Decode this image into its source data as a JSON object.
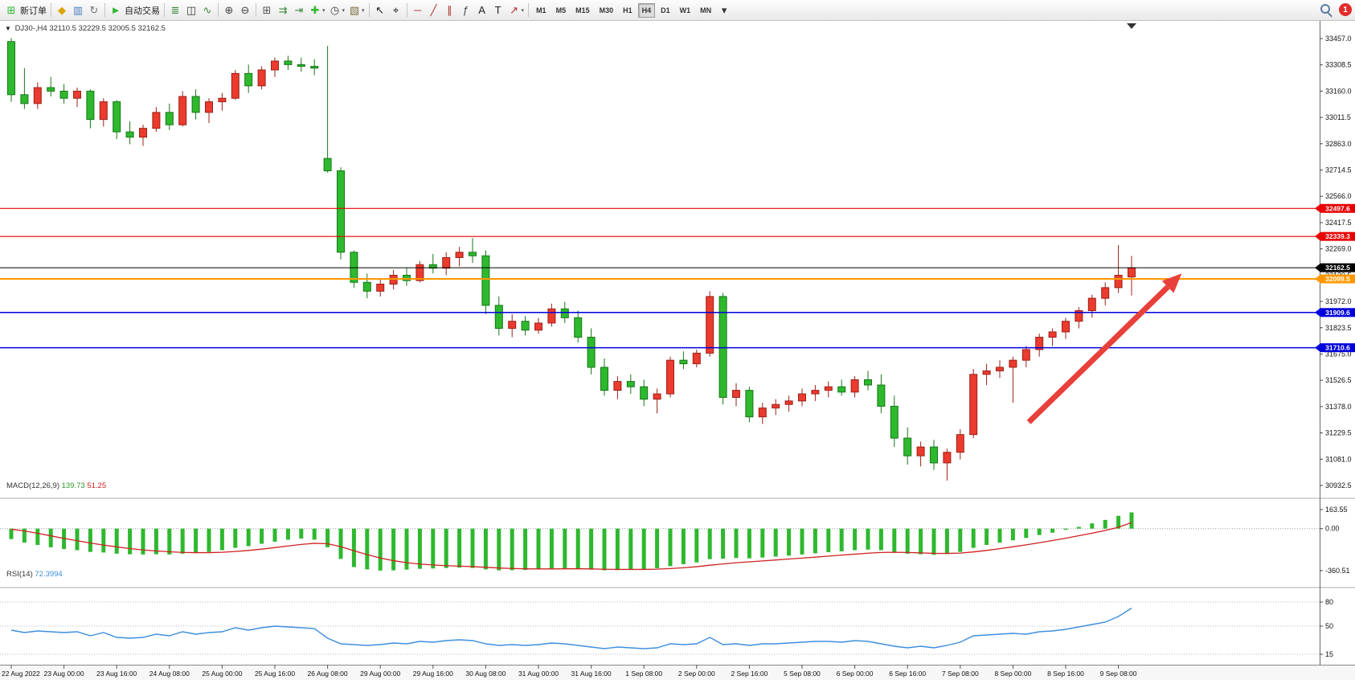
{
  "toolbar": {
    "notification_count": "1",
    "items": [
      {
        "type": "button",
        "name": "new-order-button",
        "icon_name": "new-order-icon",
        "glyph": "⊞",
        "color": "#2eb82e",
        "label": "新订单"
      },
      {
        "type": "sep"
      },
      {
        "type": "icon",
        "name": "alerts-icon",
        "glyph": "◆",
        "color": "#d9a300"
      },
      {
        "type": "icon",
        "name": "market-watch-icon",
        "glyph": "▥",
        "color": "#4a7dbf"
      },
      {
        "type": "icon",
        "name": "refresh-icon",
        "glyph": "↻",
        "color": "#777777"
      },
      {
        "type": "sep"
      },
      {
        "type": "button",
        "name": "autotrading-button",
        "icon_name": "autotrading-play-icon",
        "glyph": "►",
        "color": "#2eb82e",
        "label": "自动交易"
      },
      {
        "type": "sep"
      },
      {
        "type": "icon",
        "name": "bar-chart-icon",
        "glyph": "≣",
        "color": "#3c8a3c"
      },
      {
        "type": "icon",
        "name": "candlestick-chart-icon",
        "glyph": "◫",
        "color": "#333333"
      },
      {
        "type": "icon",
        "name": "line-chart-icon",
        "glyph": "∿",
        "color": "#3c8a3c"
      },
      {
        "type": "sep"
      },
      {
        "type": "icon",
        "name": "zoom-in-icon",
        "glyph": "⊕",
        "color": "#444444"
      },
      {
        "type": "icon",
        "name": "zoom-out-icon",
        "glyph": "⊖",
        "color": "#444444"
      },
      {
        "type": "sep"
      },
      {
        "type": "icon",
        "name": "tile-windows-icon",
        "glyph": "⊞",
        "color": "#555555"
      },
      {
        "type": "icon",
        "name": "auto-scroll-icon",
        "glyph": "⇉",
        "color": "#3c8a3c"
      },
      {
        "type": "icon",
        "name": "chart-shift-icon",
        "glyph": "⇥",
        "color": "#3c8a3c"
      },
      {
        "type": "icon",
        "name": "indicators-icon",
        "glyph": "✚",
        "color": "#2eb82e",
        "caret": true
      },
      {
        "type": "icon",
        "name": "periods-icon",
        "glyph": "◷",
        "color": "#444444",
        "caret": true
      },
      {
        "type": "icon",
        "name": "templates-icon",
        "glyph": "▧",
        "color": "#7a6f3f",
        "caret": true
      },
      {
        "type": "sep"
      },
      {
        "type": "icon",
        "name": "cursor-icon",
        "glyph": "↖",
        "color": "#222222"
      },
      {
        "type": "icon",
        "name": "crosshair-icon",
        "glyph": "⌖",
        "color": "#222222"
      },
      {
        "type": "sep"
      },
      {
        "type": "icon",
        "name": "horizontal-line-icon",
        "glyph": "─",
        "color": "#b03030"
      },
      {
        "type": "icon",
        "name": "trendline-icon",
        "glyph": "╱",
        "color": "#b03030"
      },
      {
        "type": "icon",
        "name": "channel-icon",
        "glyph": "∥",
        "color": "#b03030"
      },
      {
        "type": "icon",
        "name": "fibonacci-icon",
        "glyph": "ƒ",
        "color": "#444444"
      },
      {
        "type": "icon",
        "name": "text-icon",
        "glyph": "A",
        "color": "#222222"
      },
      {
        "type": "icon",
        "name": "text-label-icon",
        "glyph": "T",
        "color": "#222222"
      },
      {
        "type": "icon",
        "name": "arrows-icon",
        "glyph": "↗",
        "color": "#b03030",
        "caret": true
      },
      {
        "type": "sep"
      },
      {
        "type": "tf",
        "name": "timeframe-m1",
        "label": "M1"
      },
      {
        "type": "tf",
        "name": "timeframe-m5",
        "label": "M5"
      },
      {
        "type": "tf",
        "name": "timeframe-m15",
        "label": "M15"
      },
      {
        "type": "tf",
        "name": "timeframe-m30",
        "label": "M30"
      },
      {
        "type": "tf",
        "name": "timeframe-h1",
        "label": "H1"
      },
      {
        "type": "tf",
        "name": "timeframe-h4",
        "label": "H4",
        "active": true
      },
      {
        "type": "tf",
        "name": "timeframe-d1",
        "label": "D1"
      },
      {
        "type": "tf",
        "name": "timeframe-w1",
        "label": "W1"
      },
      {
        "type": "tf",
        "name": "timeframe-mn",
        "label": "MN"
      },
      {
        "type": "icon",
        "name": "toolbar-overflow-icon",
        "glyph": "▾",
        "color": "#333333"
      }
    ]
  },
  "chart_data": {
    "type": "candlestick",
    "symbol_period": "DJ30-,H4",
    "ohlc_text": "32110.5 32229.5 32005.5 32162.5",
    "ohlc_current": {
      "open": 32110.5,
      "high": 32229.5,
      "low": 32005.5,
      "close": 32162.5
    },
    "colors": {
      "bull": "#eb3b2e",
      "bull_border": "#9c2018",
      "bear": "#2eb82e",
      "bear_border": "#177717",
      "macd_hist": "#2eb82e",
      "macd_signal": "#d02020",
      "rsi_line": "#3e8ede"
    },
    "price_axis": {
      "ticks": [
        33457.0,
        33308.5,
        33160.0,
        33011.5,
        32863.0,
        32714.5,
        32566.0,
        32417.5,
        32269.0,
        32120.5,
        31972.0,
        31823.5,
        31675.0,
        31526.5,
        31378.0,
        31229.5,
        31081.0,
        30932.5
      ]
    },
    "hlines": [
      {
        "price": 32497.6,
        "label": "32497.6",
        "color": "#e80000",
        "width": 1.2
      },
      {
        "price": 32339.3,
        "label": "32339.3",
        "color": "#e80000",
        "width": 1.2
      },
      {
        "price": 32162.5,
        "label": "32162.5",
        "color": "#000000",
        "width": 1
      },
      {
        "price": 32099.5,
        "label": "32099.5",
        "color": "#ff9800",
        "width": 2
      },
      {
        "price": 31909.6,
        "label": "31909.6",
        "color": "#0000dd",
        "width": 1.5
      },
      {
        "price": 31710.6,
        "label": "31710.6",
        "color": "#0000dd",
        "width": 1.5
      }
    ],
    "arrow": {
      "from": {
        "index": 77.2,
        "price": 31290
      },
      "to": {
        "index": 88.8,
        "price": 32130
      },
      "color": "#e8403a"
    },
    "time_labels": [
      "22 Aug 2022",
      "23 Aug 00:00",
      "23 Aug 16:00",
      "24 Aug 08:00",
      "25 Aug 00:00",
      "25 Aug 16:00",
      "26 Aug 08:00",
      "29 Aug 00:00",
      "29 Aug 16:00",
      "30 Aug 08:00",
      "31 Aug 00:00",
      "31 Aug 16:00",
      "1 Sep 08:00",
      "2 Sep 00:00",
      "2 Sep 16:00",
      "5 Sep 08:00",
      "6 Sep 00:00",
      "6 Sep 16:00",
      "7 Sep 08:00",
      "8 Sep 00:00",
      "8 Sep 16:00",
      "9 Sep 08:00"
    ],
    "candles": [
      [
        33440,
        33460,
        33100,
        33140
      ],
      [
        33140,
        33290,
        33060,
        33090
      ],
      [
        33090,
        33210,
        33060,
        33180
      ],
      [
        33180,
        33240,
        33130,
        33160
      ],
      [
        33160,
        33200,
        33090,
        33120
      ],
      [
        33120,
        33180,
        33070,
        33160
      ],
      [
        33160,
        33170,
        32950,
        33000
      ],
      [
        33000,
        33120,
        32960,
        33100
      ],
      [
        33100,
        33110,
        32890,
        32930
      ],
      [
        32930,
        32990,
        32860,
        32900
      ],
      [
        32900,
        32970,
        32850,
        32950
      ],
      [
        32950,
        33070,
        32930,
        33040
      ],
      [
        33040,
        33090,
        32940,
        32970
      ],
      [
        32970,
        33160,
        32960,
        33130
      ],
      [
        33130,
        33170,
        33000,
        33040
      ],
      [
        33040,
        33120,
        32980,
        33100
      ],
      [
        33100,
        33150,
        33050,
        33120
      ],
      [
        33120,
        33280,
        33110,
        33260
      ],
      [
        33260,
        33310,
        33150,
        33190
      ],
      [
        33190,
        33300,
        33170,
        33280
      ],
      [
        33280,
        33350,
        33240,
        33330
      ],
      [
        33330,
        33360,
        33280,
        33310
      ],
      [
        33310,
        33350,
        33270,
        33300
      ],
      [
        33300,
        33340,
        33250,
        33290
      ],
      [
        32780,
        33415,
        32700,
        32710
      ],
      [
        32710,
        32730,
        32210,
        32250
      ],
      [
        32250,
        32260,
        32050,
        32080
      ],
      [
        32080,
        32130,
        31990,
        32030
      ],
      [
        32030,
        32100,
        32000,
        32070
      ],
      [
        32070,
        32150,
        32040,
        32120
      ],
      [
        32120,
        32160,
        32060,
        32090
      ],
      [
        32090,
        32200,
        32080,
        32180
      ],
      [
        32180,
        32240,
        32130,
        32160
      ],
      [
        32160,
        32250,
        32120,
        32220
      ],
      [
        32220,
        32280,
        32170,
        32250
      ],
      [
        32250,
        32330,
        32190,
        32230
      ],
      [
        32230,
        32260,
        31900,
        31950
      ],
      [
        31950,
        32000,
        31780,
        31820
      ],
      [
        31820,
        31900,
        31770,
        31860
      ],
      [
        31860,
        31890,
        31780,
        31810
      ],
      [
        31810,
        31880,
        31790,
        31850
      ],
      [
        31850,
        31960,
        31830,
        31930
      ],
      [
        31930,
        31970,
        31850,
        31880
      ],
      [
        31880,
        31920,
        31740,
        31770
      ],
      [
        31770,
        31820,
        31560,
        31600
      ],
      [
        31600,
        31650,
        31440,
        31470
      ],
      [
        31470,
        31550,
        31420,
        31520
      ],
      [
        31520,
        31560,
        31450,
        31490
      ],
      [
        31490,
        31530,
        31380,
        31420
      ],
      [
        31420,
        31480,
        31340,
        31450
      ],
      [
        31450,
        31660,
        31430,
        31640
      ],
      [
        31640,
        31690,
        31590,
        31620
      ],
      [
        31620,
        31700,
        31600,
        31680
      ],
      [
        31680,
        32030,
        31660,
        32000
      ],
      [
        32000,
        32020,
        31390,
        31430
      ],
      [
        31430,
        31510,
        31380,
        31470
      ],
      [
        31470,
        31490,
        31290,
        31320
      ],
      [
        31320,
        31400,
        31280,
        31370
      ],
      [
        31370,
        31420,
        31330,
        31390
      ],
      [
        31390,
        31440,
        31350,
        31410
      ],
      [
        31410,
        31480,
        31380,
        31450
      ],
      [
        31450,
        31500,
        31410,
        31470
      ],
      [
        31470,
        31520,
        31430,
        31490
      ],
      [
        31490,
        31530,
        31440,
        31460
      ],
      [
        31460,
        31550,
        31430,
        31530
      ],
      [
        31530,
        31580,
        31470,
        31500
      ],
      [
        31500,
        31560,
        31340,
        31380
      ],
      [
        31380,
        31440,
        31150,
        31200
      ],
      [
        31200,
        31260,
        31050,
        31100
      ],
      [
        31100,
        31180,
        31040,
        31150
      ],
      [
        31150,
        31190,
        31020,
        31060
      ],
      [
        31060,
        31140,
        30960,
        31120
      ],
      [
        31120,
        31250,
        31080,
        31220
      ],
      [
        31220,
        31590,
        31200,
        31560
      ],
      [
        31560,
        31620,
        31500,
        31580
      ],
      [
        31580,
        31640,
        31540,
        31600
      ],
      [
        31600,
        31660,
        31400,
        31640
      ],
      [
        31640,
        31720,
        31600,
        31700
      ],
      [
        31700,
        31790,
        31660,
        31770
      ],
      [
        31770,
        31820,
        31720,
        31800
      ],
      [
        31800,
        31880,
        31760,
        31860
      ],
      [
        31860,
        31940,
        31820,
        31920
      ],
      [
        31920,
        32010,
        31880,
        31990
      ],
      [
        31990,
        32080,
        31950,
        32050
      ],
      [
        32050,
        32290,
        32020,
        32120
      ],
      [
        32110.5,
        32229.5,
        32005.5,
        32162.5
      ]
    ],
    "macd": {
      "label": "MACD(12,26,9)",
      "main_text": "139.73",
      "signal_text": "51.25",
      "main_value": 139.73,
      "signal_value": 51.25,
      "axis": [
        {
          "text": "163.55",
          "value": 163.55
        },
        {
          "text": "0.00",
          "value": 0
        },
        {
          "text": "-360.51",
          "value": -360.51
        }
      ],
      "histogram": [
        -90,
        -120,
        -140,
        -160,
        -175,
        -185,
        -200,
        -205,
        -215,
        -220,
        -222,
        -220,
        -222,
        -215,
        -210,
        -200,
        -185,
        -165,
        -150,
        -130,
        -112,
        -95,
        -85,
        -95,
        -160,
        -260,
        -330,
        -350,
        -360,
        -358,
        -352,
        -345,
        -342,
        -338,
        -335,
        -338,
        -350,
        -358,
        -357,
        -355,
        -350,
        -342,
        -340,
        -345,
        -352,
        -358,
        -355,
        -350,
        -348,
        -340,
        -322,
        -305,
        -290,
        -262,
        -258,
        -252,
        -255,
        -248,
        -240,
        -232,
        -222,
        -212,
        -202,
        -195,
        -185,
        -180,
        -185,
        -200,
        -215,
        -220,
        -225,
        -218,
        -200,
        -165,
        -140,
        -120,
        -100,
        -80,
        -55,
        -35,
        -10,
        15,
        45,
        75,
        110,
        139.73
      ],
      "signal": [
        -5,
        -20,
        -40,
        -62,
        -84,
        -104,
        -124,
        -141,
        -157,
        -171,
        -183,
        -192,
        -199,
        -204,
        -206,
        -206,
        -203,
        -196,
        -187,
        -176,
        -163,
        -149,
        -136,
        -126,
        -130,
        -155,
        -190,
        -223,
        -252,
        -275,
        -292,
        -304,
        -312,
        -318,
        -322,
        -326,
        -332,
        -338,
        -342,
        -345,
        -346,
        -346,
        -345,
        -344,
        -346,
        -349,
        -350,
        -350,
        -350,
        -348,
        -343,
        -336,
        -327,
        -314,
        -303,
        -293,
        -285,
        -277,
        -269,
        -261,
        -253,
        -245,
        -236,
        -227,
        -219,
        -211,
        -205,
        -203,
        -205,
        -208,
        -212,
        -213,
        -210,
        -200,
        -187,
        -172,
        -156,
        -139,
        -121,
        -102,
        -82,
        -61,
        -39,
        -16,
        12,
        51.25
      ]
    },
    "rsi": {
      "label": "RSI(14)",
      "value_text": "72.3994",
      "value": 72.3994,
      "levels": [
        80,
        50,
        15
      ],
      "axis": [
        {
          "text": "80",
          "value": 80
        },
        {
          "text": "50",
          "value": 50
        },
        {
          "text": "15",
          "value": 15
        }
      ],
      "values": [
        45,
        42,
        44,
        43,
        42,
        43,
        38,
        42,
        36,
        35,
        36,
        40,
        38,
        43,
        40,
        42,
        43,
        48,
        45,
        48,
        50,
        49,
        48,
        47,
        35,
        28,
        27,
        26,
        27,
        29,
        28,
        31,
        30,
        32,
        33,
        32,
        28,
        26,
        27,
        26,
        27,
        29,
        28,
        26,
        24,
        22,
        24,
        23,
        22,
        23,
        28,
        27,
        28,
        36,
        27,
        28,
        26,
        28,
        28,
        29,
        30,
        31,
        31,
        30,
        32,
        31,
        28,
        25,
        23,
        25,
        23,
        26,
        30,
        38,
        39,
        40,
        41,
        40,
        43,
        44,
        46,
        49,
        52,
        55,
        62,
        72.4
      ]
    }
  }
}
